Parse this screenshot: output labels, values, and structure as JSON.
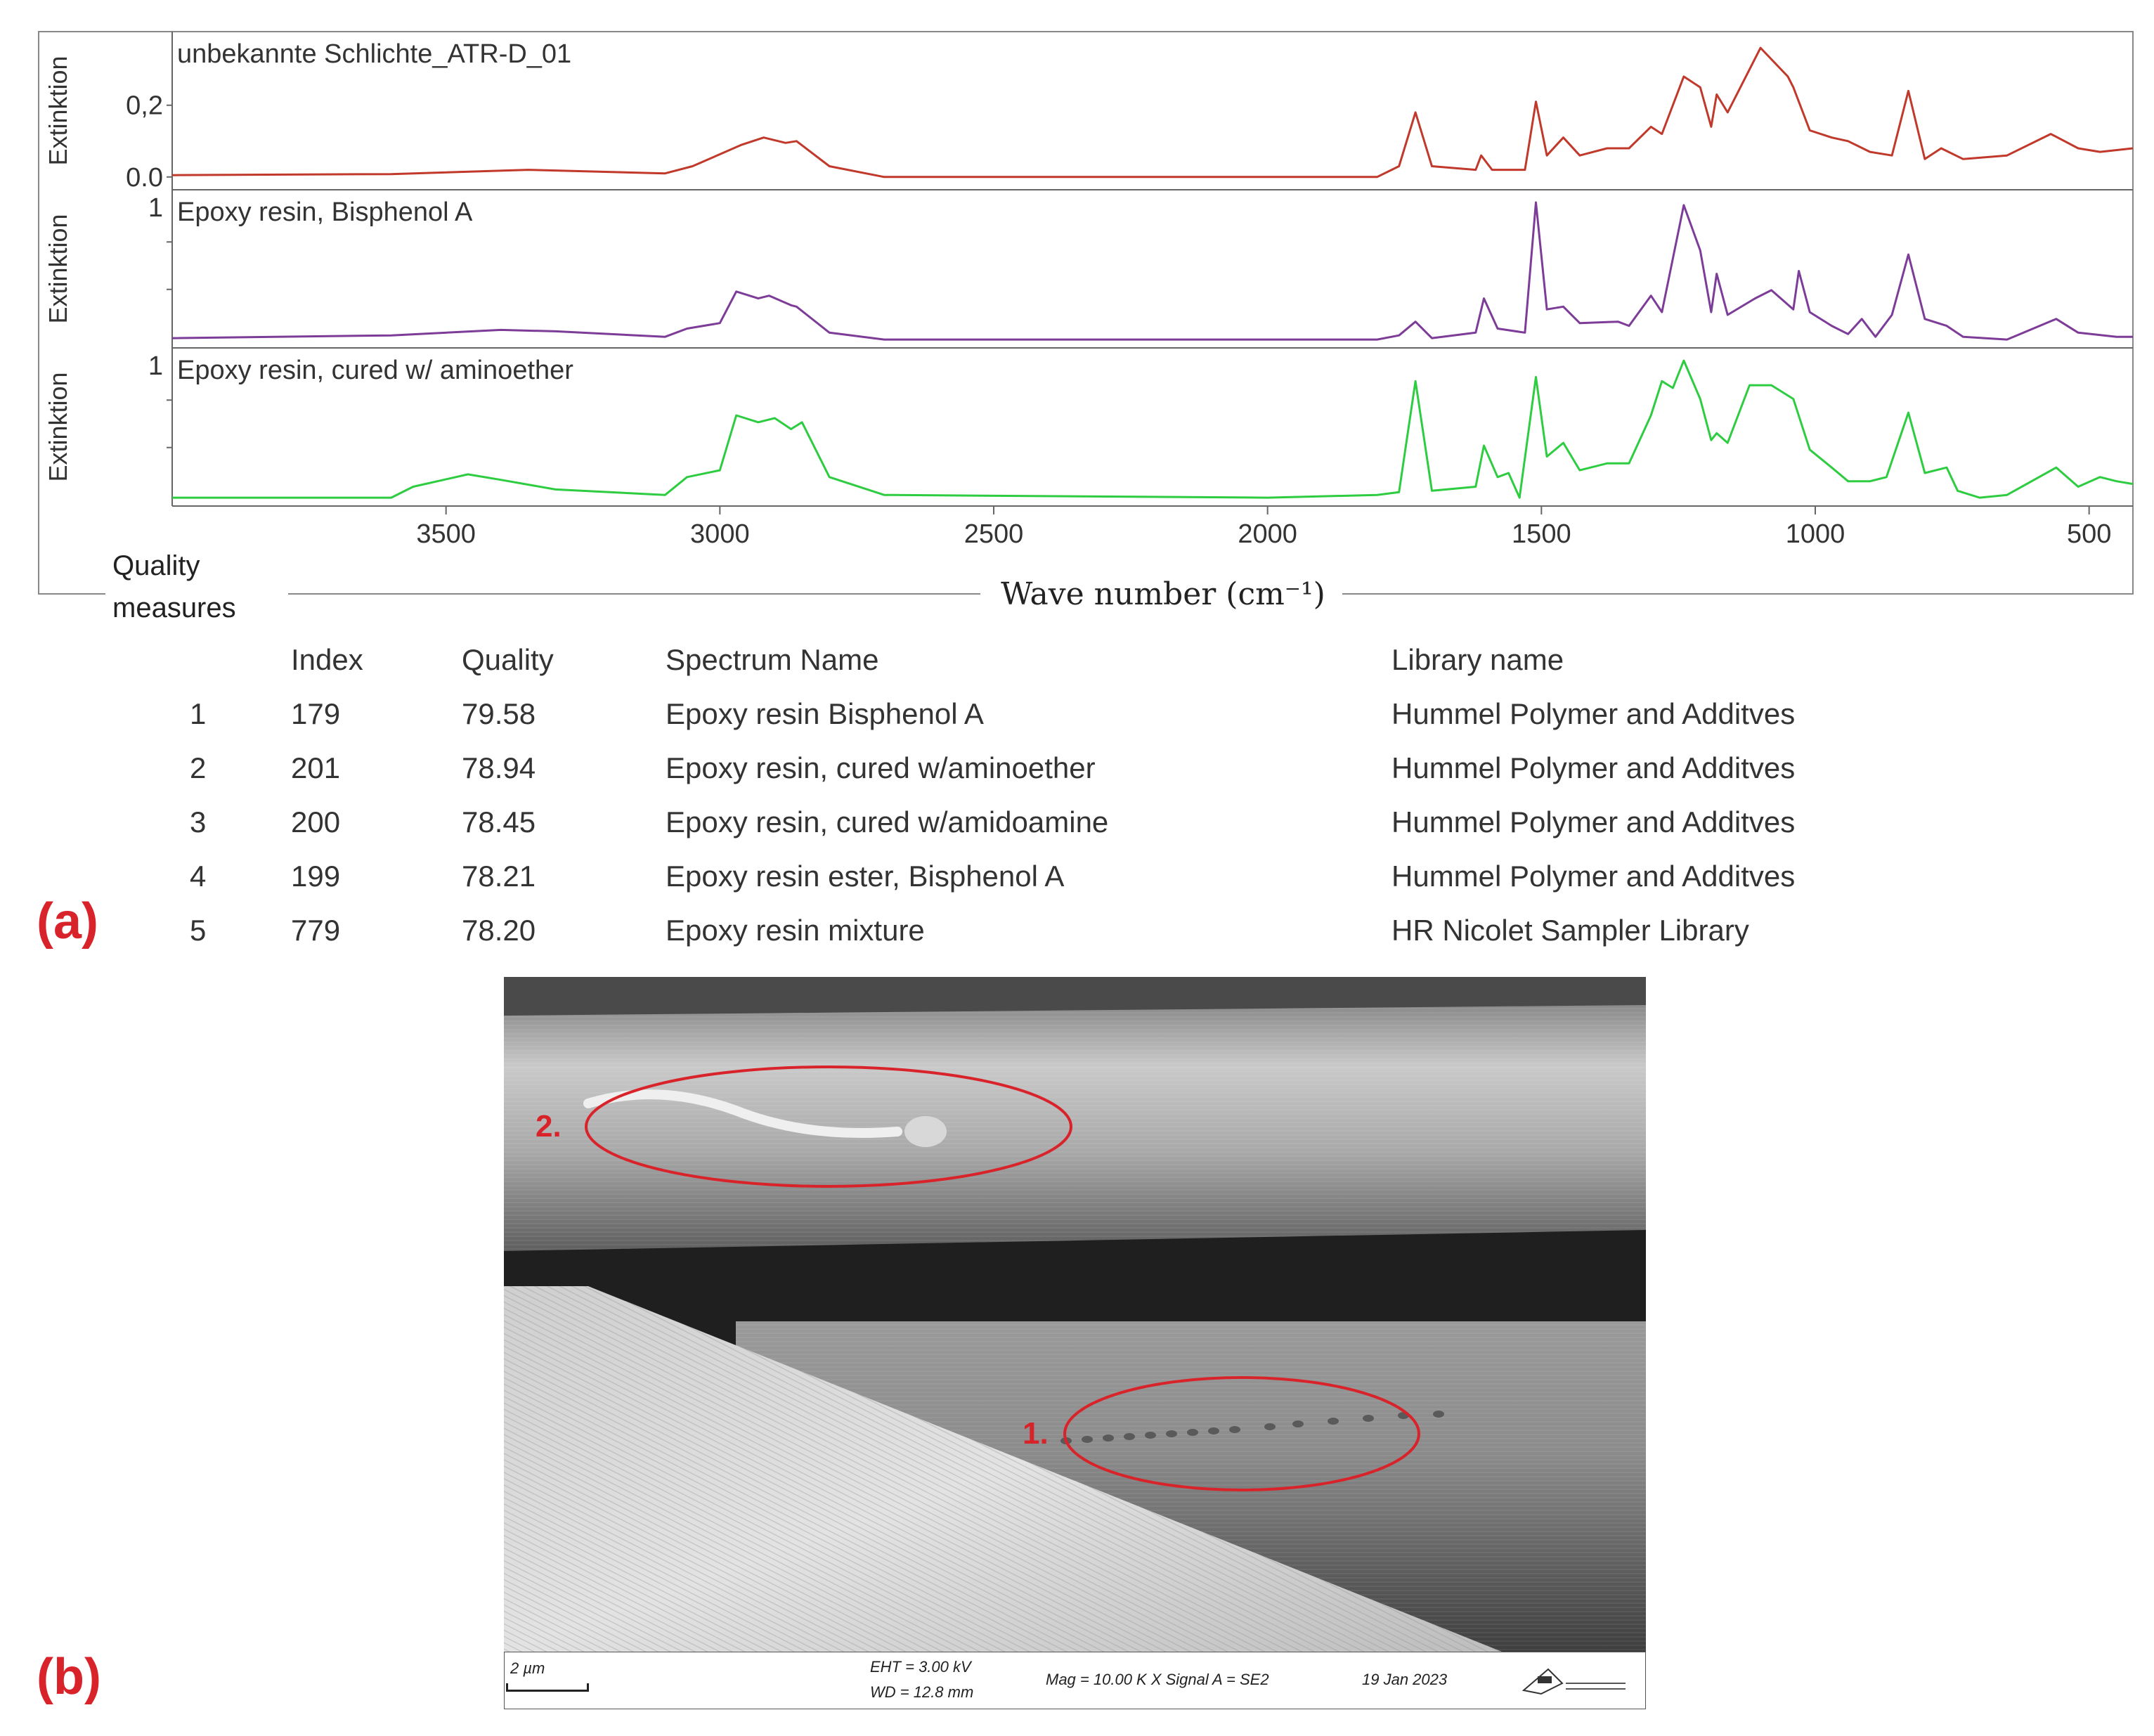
{
  "figure": {
    "panel_a_label": "(a)",
    "panel_b_label": "(b)",
    "quality_measures_label": "Quality measures"
  },
  "chart_data": {
    "type": "line",
    "xlabel": "Wave number (cm⁻¹)",
    "x_axis_reversed": true,
    "xlim": [
      4000,
      420
    ],
    "xticks": [
      3500,
      3000,
      2500,
      2000,
      1500,
      1000,
      500
    ],
    "grid": false,
    "legend": "none",
    "panels": [
      {
        "title": "unbekannte Schlichte_ATR-D_01",
        "ylabel": "Extinktion",
        "yticks": [
          "0.0",
          "0,2"
        ],
        "ylim": [
          -0.02,
          0.37
        ],
        "color": "#c0392b",
        "points": [
          [
            4000,
            0.005
          ],
          [
            3600,
            0.008
          ],
          [
            3350,
            0.02
          ],
          [
            3100,
            0.01
          ],
          [
            3050,
            0.03
          ],
          [
            2960,
            0.09
          ],
          [
            2920,
            0.11
          ],
          [
            2880,
            0.095
          ],
          [
            2860,
            0.1
          ],
          [
            2800,
            0.03
          ],
          [
            2700,
            0.0
          ],
          [
            1800,
            0.0
          ],
          [
            1760,
            0.03
          ],
          [
            1730,
            0.18
          ],
          [
            1700,
            0.03
          ],
          [
            1620,
            0.02
          ],
          [
            1610,
            0.06
          ],
          [
            1590,
            0.02
          ],
          [
            1530,
            0.02
          ],
          [
            1510,
            0.21
          ],
          [
            1490,
            0.06
          ],
          [
            1460,
            0.11
          ],
          [
            1430,
            0.06
          ],
          [
            1380,
            0.08
          ],
          [
            1340,
            0.08
          ],
          [
            1300,
            0.14
          ],
          [
            1280,
            0.12
          ],
          [
            1240,
            0.28
          ],
          [
            1210,
            0.25
          ],
          [
            1190,
            0.14
          ],
          [
            1180,
            0.23
          ],
          [
            1160,
            0.18
          ],
          [
            1100,
            0.36
          ],
          [
            1050,
            0.28
          ],
          [
            1040,
            0.25
          ],
          [
            1010,
            0.13
          ],
          [
            970,
            0.11
          ],
          [
            940,
            0.1
          ],
          [
            900,
            0.07
          ],
          [
            860,
            0.06
          ],
          [
            830,
            0.24
          ],
          [
            800,
            0.05
          ],
          [
            770,
            0.08
          ],
          [
            730,
            0.05
          ],
          [
            650,
            0.06
          ],
          [
            570,
            0.12
          ],
          [
            520,
            0.08
          ],
          [
            480,
            0.07
          ],
          [
            420,
            0.08
          ]
        ]
      },
      {
        "title": "Epoxy resin, Bisphenol A",
        "ylabel": "Extinktion",
        "yticks": [
          "1"
        ],
        "ylim": [
          -0.02,
          1.0
        ],
        "color": "#7d3c98",
        "points": [
          [
            4000,
            0.01
          ],
          [
            3600,
            0.03
          ],
          [
            3400,
            0.07
          ],
          [
            3300,
            0.06
          ],
          [
            3100,
            0.02
          ],
          [
            3060,
            0.08
          ],
          [
            3000,
            0.12
          ],
          [
            2970,
            0.35
          ],
          [
            2930,
            0.3
          ],
          [
            2910,
            0.32
          ],
          [
            2870,
            0.25
          ],
          [
            2860,
            0.24
          ],
          [
            2800,
            0.05
          ],
          [
            2700,
            0.0
          ],
          [
            1800,
            0.0
          ],
          [
            1760,
            0.03
          ],
          [
            1730,
            0.13
          ],
          [
            1700,
            0.01
          ],
          [
            1620,
            0.05
          ],
          [
            1605,
            0.3
          ],
          [
            1580,
            0.08
          ],
          [
            1530,
            0.05
          ],
          [
            1510,
            1.0
          ],
          [
            1490,
            0.22
          ],
          [
            1460,
            0.24
          ],
          [
            1430,
            0.12
          ],
          [
            1360,
            0.13
          ],
          [
            1340,
            0.1
          ],
          [
            1300,
            0.32
          ],
          [
            1280,
            0.2
          ],
          [
            1240,
            0.98
          ],
          [
            1210,
            0.65
          ],
          [
            1190,
            0.2
          ],
          [
            1180,
            0.48
          ],
          [
            1160,
            0.18
          ],
          [
            1110,
            0.3
          ],
          [
            1080,
            0.36
          ],
          [
            1040,
            0.22
          ],
          [
            1030,
            0.5
          ],
          [
            1010,
            0.2
          ],
          [
            970,
            0.1
          ],
          [
            940,
            0.04
          ],
          [
            915,
            0.15
          ],
          [
            890,
            0.02
          ],
          [
            860,
            0.18
          ],
          [
            830,
            0.62
          ],
          [
            800,
            0.15
          ],
          [
            760,
            0.1
          ],
          [
            730,
            0.02
          ],
          [
            650,
            0.0
          ],
          [
            560,
            0.15
          ],
          [
            520,
            0.05
          ],
          [
            450,
            0.02
          ],
          [
            420,
            0.02
          ]
        ]
      },
      {
        "title": "Epoxy resin, cured w/ aminoether",
        "ylabel": "Extinktion",
        "yticks": [
          "1"
        ],
        "ylim": [
          -0.02,
          1.0
        ],
        "color": "#2ecc40",
        "points": [
          [
            4000,
            0.0
          ],
          [
            3600,
            0.0
          ],
          [
            3560,
            0.08
          ],
          [
            3460,
            0.17
          ],
          [
            3400,
            0.13
          ],
          [
            3300,
            0.06
          ],
          [
            3100,
            0.02
          ],
          [
            3060,
            0.15
          ],
          [
            3000,
            0.2
          ],
          [
            2970,
            0.6
          ],
          [
            2930,
            0.55
          ],
          [
            2900,
            0.58
          ],
          [
            2870,
            0.5
          ],
          [
            2850,
            0.55
          ],
          [
            2800,
            0.15
          ],
          [
            2700,
            0.02
          ],
          [
            2000,
            0.0
          ],
          [
            1800,
            0.02
          ],
          [
            1760,
            0.04
          ],
          [
            1730,
            0.85
          ],
          [
            1700,
            0.05
          ],
          [
            1620,
            0.08
          ],
          [
            1605,
            0.38
          ],
          [
            1580,
            0.15
          ],
          [
            1560,
            0.18
          ],
          [
            1540,
            0.0
          ],
          [
            1510,
            0.88
          ],
          [
            1490,
            0.3
          ],
          [
            1460,
            0.4
          ],
          [
            1430,
            0.2
          ],
          [
            1380,
            0.25
          ],
          [
            1340,
            0.25
          ],
          [
            1300,
            0.6
          ],
          [
            1280,
            0.85
          ],
          [
            1260,
            0.8
          ],
          [
            1240,
            1.0
          ],
          [
            1210,
            0.72
          ],
          [
            1190,
            0.42
          ],
          [
            1180,
            0.47
          ],
          [
            1160,
            0.4
          ],
          [
            1120,
            0.82
          ],
          [
            1080,
            0.82
          ],
          [
            1040,
            0.72
          ],
          [
            1010,
            0.35
          ],
          [
            970,
            0.22
          ],
          [
            940,
            0.12
          ],
          [
            900,
            0.12
          ],
          [
            870,
            0.15
          ],
          [
            830,
            0.62
          ],
          [
            800,
            0.18
          ],
          [
            760,
            0.22
          ],
          [
            740,
            0.05
          ],
          [
            700,
            0.0
          ],
          [
            650,
            0.02
          ],
          [
            560,
            0.22
          ],
          [
            520,
            0.08
          ],
          [
            480,
            0.15
          ],
          [
            450,
            0.12
          ],
          [
            420,
            0.1
          ]
        ]
      }
    ]
  },
  "table": {
    "headers": [
      "",
      "Index",
      "Quality",
      "Spectrum Name",
      "Library name"
    ],
    "rows": [
      [
        "1",
        "179",
        "79.58",
        "Epoxy resin Bisphenol A",
        "Hummel Polymer and Additves"
      ],
      [
        "2",
        "201",
        "78.94",
        "Epoxy resin, cured w/aminoether",
        "Hummel Polymer and Additves"
      ],
      [
        "3",
        "200",
        "78.45",
        "Epoxy resin, cured w/amidoamine",
        "Hummel Polymer and Additves"
      ],
      [
        "4",
        "199",
        "78.21",
        "Epoxy resin ester, Bisphenol A",
        "Hummel Polymer and Additves"
      ],
      [
        "5",
        "779",
        "78.20",
        "Epoxy resin mixture",
        "HR Nicolet Sampler Library"
      ]
    ]
  },
  "sem": {
    "annotations": [
      "2.",
      "1."
    ],
    "annotation_color": "#d9232a",
    "scale_bar": "2 µm",
    "eht": "EHT =  3.00 kV",
    "wd": "WD = 12.8 mm",
    "mag": "Mag =  10.00 K X  Signal A = SE2",
    "date": "19 Jan 2023"
  }
}
